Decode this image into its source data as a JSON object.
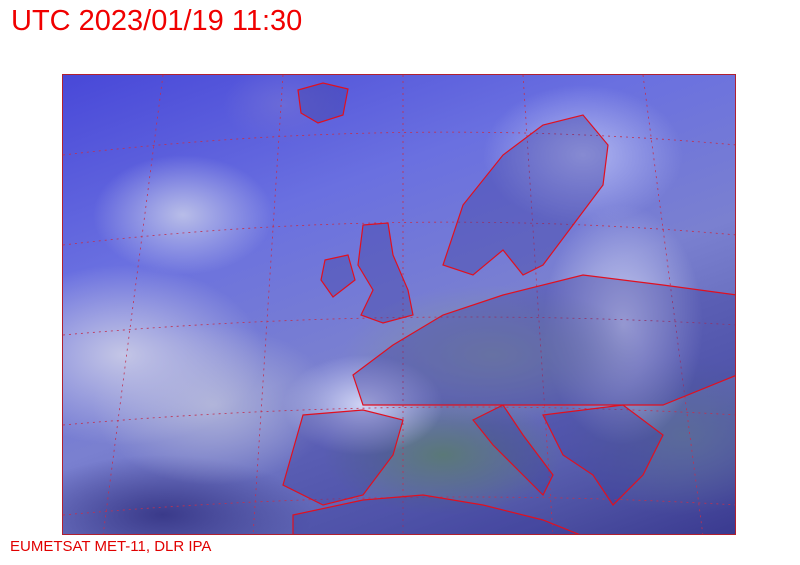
{
  "header": {
    "title": "UTC 2023/01/19 11:30"
  },
  "image": {
    "description_colors": {
      "coastline": "#e01020",
      "grid": "#c03050"
    }
  },
  "footer": {
    "credit": "EUMETSAT MET-11, DLR IPA"
  }
}
